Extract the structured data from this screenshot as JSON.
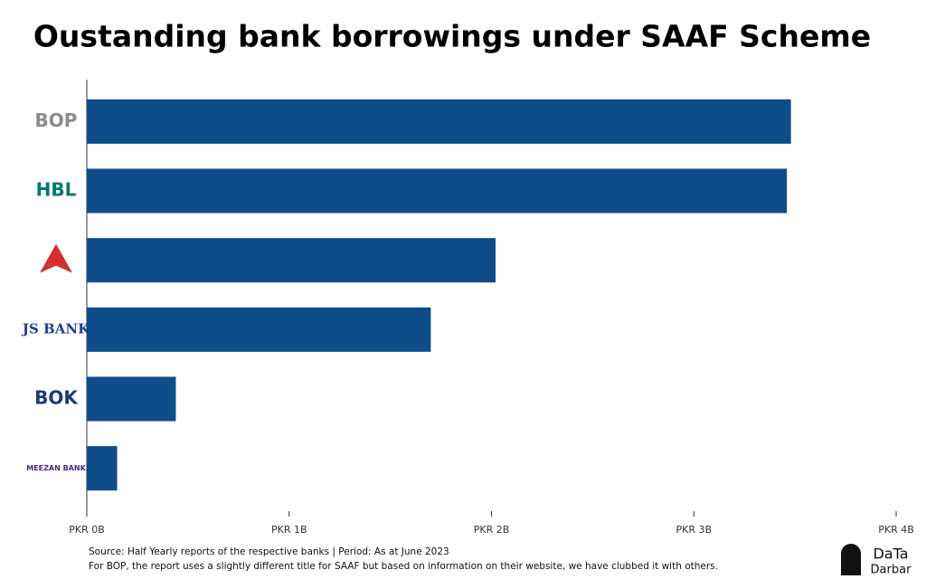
{
  "chart_data": {
    "type": "barh",
    "title": "Oustanding bank borrowings under SAAF Scheme",
    "categories": [
      "BOP",
      "HBL",
      null,
      "JS BANK",
      "BOK",
      "MEEZAN BANK"
    ],
    "label_colors": [
      "#8c8c8c",
      "#00796b",
      "#d32f2f",
      "#1f3f8f",
      "#1f3a78",
      "#4b2a7a"
    ],
    "values": [
      3.48,
      3.46,
      2.02,
      1.7,
      0.44,
      0.15
    ],
    "color": "#0f4c8a",
    "xlim": [
      0,
      4
    ],
    "xticks": [
      {
        "value": 0,
        "label": "PKR 0B"
      },
      {
        "value": 1,
        "label": "PKR 1B"
      },
      {
        "value": 2,
        "label": "PKR 2B"
      },
      {
        "value": 3,
        "label": "PKR 3B"
      },
      {
        "value": 4,
        "label": "PKR 4B"
      }
    ],
    "grid": false,
    "notes": [
      "Source: Half Yearly reports of the respective banks | Period: As at June 2023",
      "For BOP, the report uses a slightly different title for SAAF but based on information on their website, we have clubbed it with others."
    ],
    "brand": [
      "DaTa",
      "Darbar"
    ]
  }
}
